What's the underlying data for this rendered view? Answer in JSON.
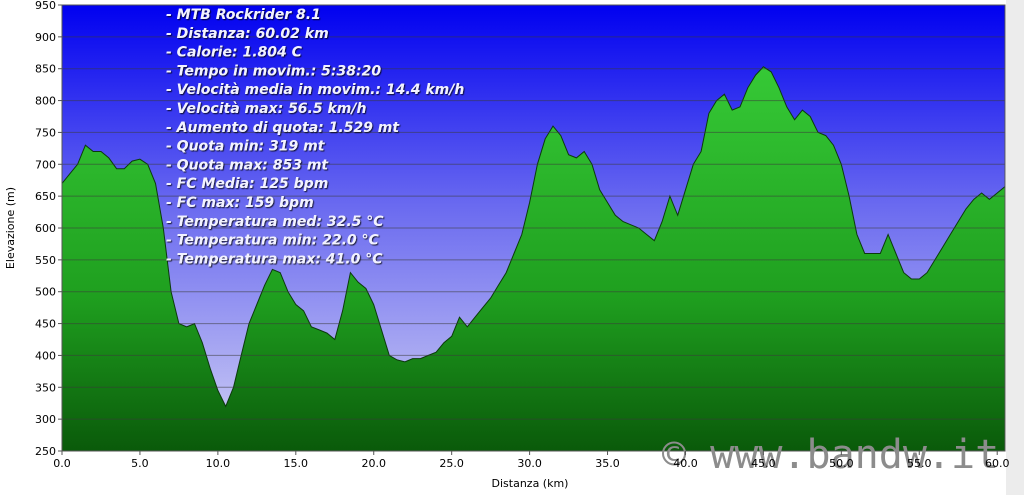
{
  "chart_data": {
    "type": "area",
    "y_label": "Elevazione (m)",
    "x_label": "Distanza   (km)",
    "annotations": [
      "- MTB Rockrider 8.1",
      "- Distanza: 60.02 km",
      "- Calorie: 1.804 C",
      "- Tempo in movim.: 5:38:20",
      "- Velocità media in movim.: 14.4 km/h",
      "- Velocità max: 56.5 km/h",
      "- Aumento di quota: 1.529 mt",
      "- Quota min: 319 mt",
      "- Quota max: 853 mt",
      "- FC Media: 125 bpm",
      "- FC max: 159 bpm",
      "- Temperatura med: 32.5 °C",
      "- Temperatura min: 22.0 °C",
      "- Temperatura max: 41.0 °C"
    ],
    "watermark": "© www.bandw.it",
    "color": "#1f9f1f",
    "grid": true,
    "xlim": [
      0,
      60.5
    ],
    "ylim": [
      250,
      950
    ],
    "yticks": [
      250,
      300,
      350,
      400,
      450,
      500,
      550,
      600,
      650,
      700,
      750,
      800,
      850,
      900,
      950
    ],
    "xticks": [
      {
        "value": 0,
        "label": "0.0"
      },
      {
        "value": 5,
        "label": "5.0"
      },
      {
        "value": 10,
        "label": "10.0"
      },
      {
        "value": 15,
        "label": "15.0"
      },
      {
        "value": 20,
        "label": "20.0"
      },
      {
        "value": 25,
        "label": "25.0"
      },
      {
        "value": 30,
        "label": "30.0"
      },
      {
        "value": 35,
        "label": "35.0"
      },
      {
        "value": 40,
        "label": "40.0"
      },
      {
        "value": 45,
        "label": "45.0"
      },
      {
        "value": 50,
        "label": "50.0"
      },
      {
        "value": 55,
        "label": "55.0"
      },
      {
        "value": 60,
        "label": "60.0"
      }
    ],
    "x": [
      0,
      0.5,
      1,
      1.5,
      2,
      2.5,
      3,
      3.5,
      4,
      4.5,
      5,
      5.5,
      6,
      6.5,
      7,
      7.5,
      8,
      8.5,
      9,
      9.5,
      10,
      10.5,
      11,
      11.5,
      12,
      12.5,
      13,
      13.5,
      14,
      14.5,
      15,
      15.5,
      16,
      16.5,
      17,
      17.5,
      18,
      18.5,
      19,
      19.5,
      20,
      20.5,
      21,
      21.5,
      22,
      22.5,
      23,
      23.5,
      24,
      24.5,
      25,
      25.5,
      26,
      26.5,
      27,
      27.5,
      28,
      28.5,
      29,
      29.5,
      30,
      30.5,
      31,
      31.5,
      32,
      32.5,
      33,
      33.5,
      34,
      34.5,
      35,
      35.5,
      36,
      36.5,
      37,
      37.5,
      38,
      38.5,
      39,
      39.5,
      40,
      40.5,
      41,
      41.5,
      42,
      42.5,
      43,
      43.5,
      44,
      44.5,
      45,
      45.5,
      46,
      46.5,
      47,
      47.5,
      48,
      48.5,
      49,
      49.5,
      50,
      50.5,
      51,
      51.5,
      52,
      52.5,
      53,
      53.5,
      54,
      54.5,
      55,
      55.5,
      56,
      56.5,
      57,
      57.5,
      58,
      58.5,
      59,
      59.5,
      60,
      60.5
    ],
    "values": [
      670,
      685,
      700,
      730,
      720,
      720,
      710,
      693,
      693,
      705,
      708,
      700,
      670,
      600,
      500,
      450,
      445,
      450,
      420,
      380,
      345,
      320,
      350,
      400,
      450,
      480,
      510,
      535,
      530,
      500,
      480,
      470,
      445,
      440,
      435,
      425,
      470,
      530,
      515,
      505,
      480,
      440,
      400,
      393,
      390,
      395,
      395,
      400,
      405,
      420,
      430,
      460,
      445,
      460,
      475,
      490,
      510,
      530,
      560,
      590,
      640,
      700,
      740,
      760,
      745,
      715,
      710,
      720,
      700,
      660,
      640,
      620,
      610,
      605,
      600,
      590,
      580,
      610,
      650,
      620,
      660,
      700,
      720,
      780,
      800,
      810,
      785,
      790,
      820,
      840,
      853,
      845,
      820,
      790,
      770,
      785,
      775,
      750,
      745,
      730,
      700,
      650,
      590,
      560,
      560,
      560,
      590,
      560,
      530,
      520,
      520,
      530,
      550,
      570,
      590,
      610,
      630,
      645,
      655,
      645,
      655,
      665
    ]
  }
}
